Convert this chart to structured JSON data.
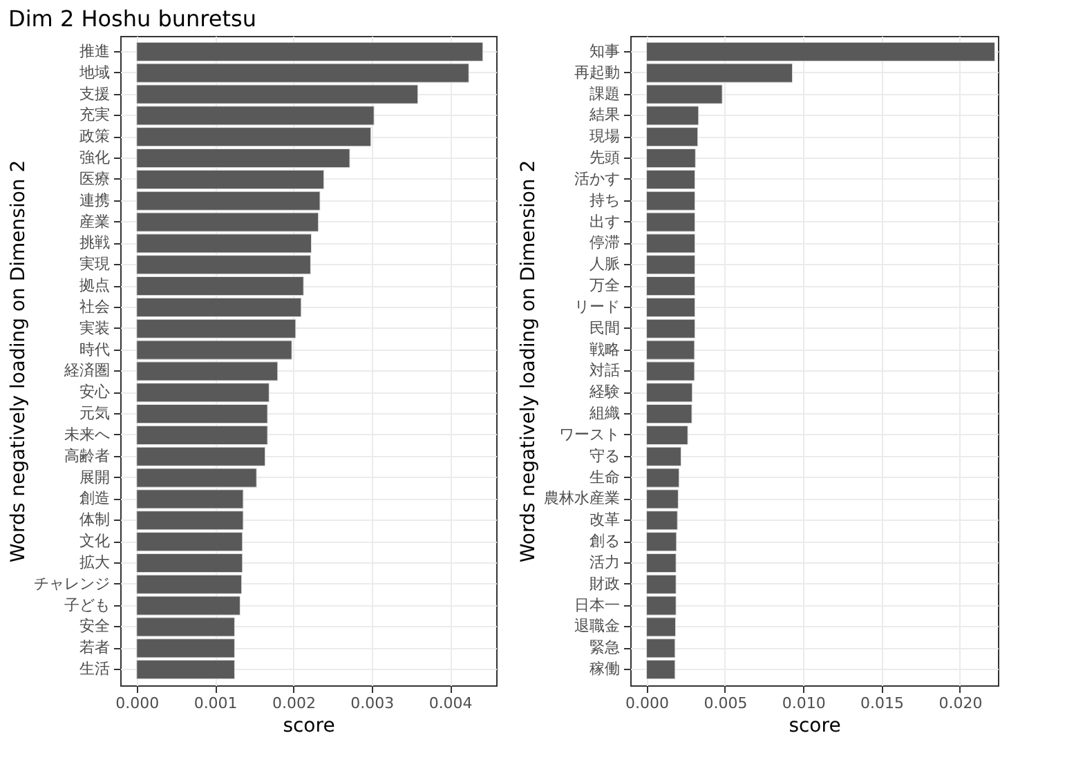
{
  "chart_data": [
    {
      "type": "bar",
      "orientation": "horizontal",
      "title": "Dim 2 Hoshu bunretsu",
      "xlabel": "score",
      "ylabel": "Words negatively loading on Dimension 2",
      "color": "#595959",
      "grid": true,
      "xlim": [
        -0.00021,
        0.00459
      ],
      "xticks": [
        {
          "value": 0,
          "label": "0.000"
        },
        0.001,
        0.002,
        0.003,
        0.004
      ],
      "categories": [
        "推進",
        "地域",
        "支援",
        "充実",
        "政策",
        "強化",
        "医療",
        "連携",
        "産業",
        "挑戦",
        "実現",
        "拠点",
        "社会",
        "実装",
        "時代",
        "経済圏",
        "安心",
        "元気",
        "未来へ",
        "高齢者",
        "展開",
        "創造",
        "体制",
        "文化",
        "拡大",
        "チャレンジ",
        "子ども",
        "安全",
        "若者",
        "生活"
      ],
      "values": [
        0.00442,
        0.00424,
        0.00359,
        0.00303,
        0.00299,
        0.00272,
        0.00239,
        0.00234,
        0.00232,
        0.00223,
        0.00222,
        0.00213,
        0.0021,
        0.00203,
        0.00198,
        0.0018,
        0.00169,
        0.00167,
        0.00167,
        0.00164,
        0.00153,
        0.00136,
        0.00136,
        0.00135,
        0.00135,
        0.00134,
        0.00132,
        0.00125,
        0.00125,
        0.00125
      ]
    },
    {
      "type": "bar",
      "orientation": "horizontal",
      "xlabel": "score",
      "ylabel": "Words negatively loading on Dimension 2",
      "color": "#595959",
      "grid": true,
      "xlim": [
        -0.00104,
        0.02243
      ],
      "xticks": [
        {
          "value": 0,
          "label": "0.000"
        },
        0.005,
        {
          "value": 0.01,
          "label": "0.010"
        },
        0.015,
        {
          "value": 0.02,
          "label": "0.020"
        }
      ],
      "categories": [
        "知事",
        "再起動",
        "課題",
        "結果",
        "現場",
        "先頭",
        "活かす",
        "持ち",
        "出す",
        "停滞",
        "人脈",
        "万全",
        "リード",
        "民間",
        "戦略",
        "対話",
        "経験",
        "組織",
        "ワースト",
        "守る",
        "生命",
        "農林水産業",
        "改革",
        "創る",
        "活力",
        "財政",
        "日本一",
        "退職金",
        "緊急",
        "稼働"
      ],
      "values": [
        0.02223,
        0.00931,
        0.00483,
        0.00332,
        0.00327,
        0.00312,
        0.00309,
        0.00309,
        0.00309,
        0.00309,
        0.00309,
        0.00309,
        0.00309,
        0.00309,
        0.00306,
        0.00306,
        0.00292,
        0.00289,
        0.00263,
        0.0022,
        0.00208,
        0.00202,
        0.00197,
        0.00191,
        0.00188,
        0.00188,
        0.00188,
        0.00185,
        0.00182,
        0.00182
      ]
    }
  ]
}
